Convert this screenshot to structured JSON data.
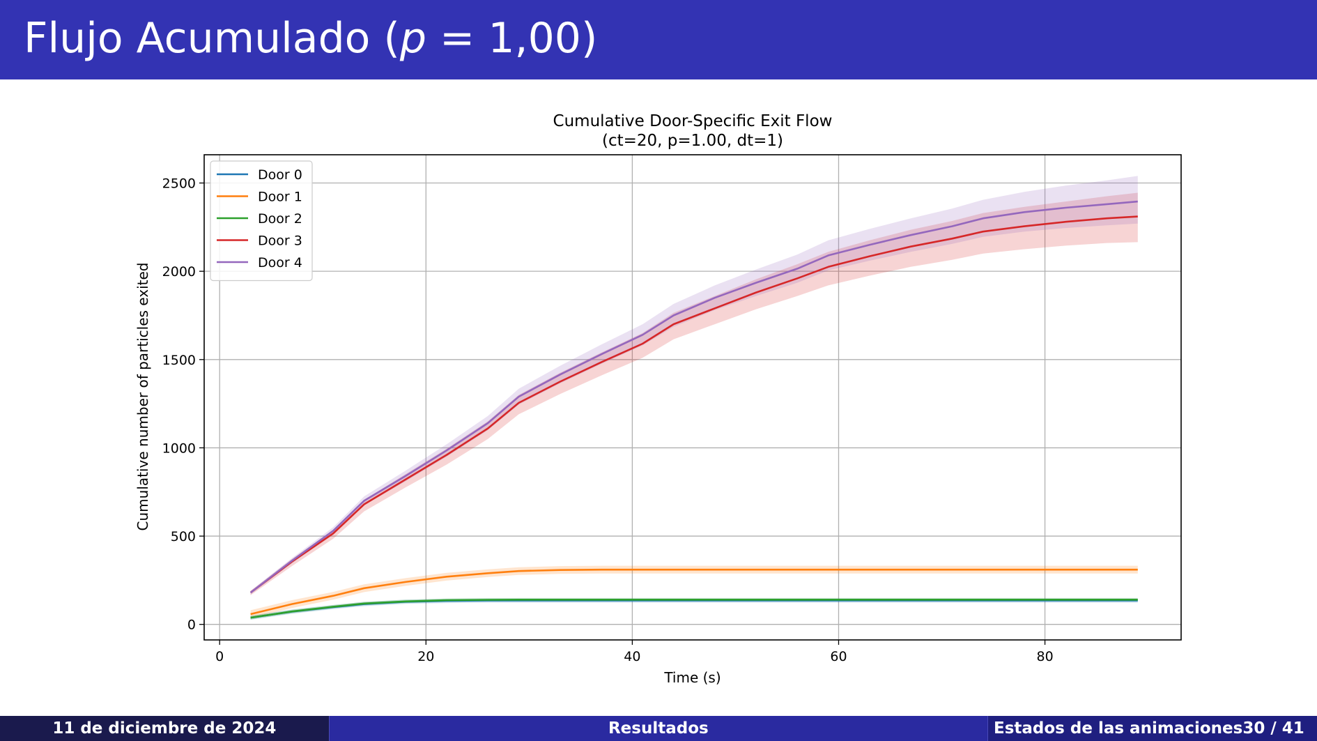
{
  "header": {
    "title_prefix": "Flujo Acumulado (",
    "title_var": "p",
    "title_suffix": " = 1,00)"
  },
  "colors": {
    "header_bg": "#3333b3",
    "footer_dark": "#1a1a4d",
    "footer_mid": "#2a2aa0"
  },
  "chart_data": {
    "type": "line",
    "title": "Cumulative Door-Specific Exit Flow",
    "subtitle": "(ct=20, p=1.00, dt=1)",
    "xlabel": "Time (s)",
    "ylabel": "Cumulative number of particles exited",
    "xlim": [
      -1.5,
      93.2
    ],
    "ylim": [
      -88,
      2660
    ],
    "xticks": [
      0,
      20,
      40,
      60,
      80
    ],
    "yticks": [
      0,
      500,
      1000,
      1500,
      2000,
      2500
    ],
    "grid": true,
    "legend_position": "top-left",
    "x": [
      3,
      7,
      11,
      14,
      18,
      22,
      26,
      29,
      33,
      37,
      41,
      44,
      48,
      52,
      56,
      59,
      63,
      67,
      71,
      74,
      78,
      82,
      86,
      89
    ],
    "series": [
      {
        "name": "Door 0",
        "color": "#1f77b4",
        "values": [
          38,
          72,
          98,
          115,
          128,
          133,
          135,
          135,
          135,
          135,
          135,
          135,
          135,
          135,
          135,
          135,
          135,
          135,
          135,
          135,
          135,
          135,
          135,
          135
        ],
        "band": 12
      },
      {
        "name": "Door 1",
        "color": "#ff7f0e",
        "values": [
          58,
          115,
          162,
          205,
          240,
          270,
          290,
          302,
          308,
          310,
          310,
          310,
          310,
          310,
          310,
          310,
          310,
          310,
          310,
          310,
          310,
          310,
          310,
          310
        ],
        "band": 22
      },
      {
        "name": "Door 2",
        "color": "#2ca02c",
        "values": [
          38,
          73,
          100,
          118,
          130,
          137,
          139,
          140,
          140,
          140,
          140,
          140,
          140,
          140,
          140,
          140,
          140,
          140,
          140,
          140,
          140,
          140,
          140,
          140
        ],
        "band": 10
      },
      {
        "name": "Door 3",
        "color": "#d62728",
        "values": [
          180,
          355,
          515,
          680,
          820,
          960,
          1110,
          1255,
          1375,
          1485,
          1590,
          1700,
          1790,
          1880,
          1960,
          2025,
          2085,
          2140,
          2185,
          2225,
          2255,
          2280,
          2300,
          2310
        ],
        "band_lo": [
          15,
          25,
          30,
          40,
          45,
          55,
          60,
          65,
          70,
          75,
          80,
          85,
          90,
          95,
          100,
          105,
          110,
          115,
          120,
          125,
          130,
          135,
          140,
          145
        ],
        "band_hi": [
          10,
          15,
          20,
          25,
          30,
          35,
          40,
          45,
          50,
          55,
          60,
          65,
          70,
          75,
          80,
          85,
          90,
          95,
          100,
          105,
          110,
          115,
          125,
          135
        ]
      },
      {
        "name": "Door 4",
        "color": "#9467bd",
        "values": [
          180,
          360,
          530,
          700,
          840,
          985,
          1140,
          1290,
          1415,
          1530,
          1640,
          1750,
          1850,
          1935,
          2015,
          2090,
          2150,
          2205,
          2255,
          2300,
          2335,
          2360,
          2380,
          2395
        ],
        "band_lo": [
          10,
          15,
          20,
          25,
          30,
          35,
          40,
          45,
          50,
          55,
          60,
          65,
          70,
          75,
          80,
          85,
          90,
          95,
          100,
          105,
          110,
          115,
          120,
          125
        ],
        "band_hi": [
          10,
          15,
          20,
          25,
          30,
          35,
          40,
          45,
          50,
          55,
          60,
          65,
          70,
          75,
          80,
          85,
          90,
          95,
          100,
          105,
          115,
          125,
          135,
          145
        ]
      }
    ]
  },
  "footer": {
    "date": "11 de diciembre de 2024",
    "section": "Resultados",
    "subsection": "Estados de las animaciones",
    "page": "30 / 41"
  }
}
